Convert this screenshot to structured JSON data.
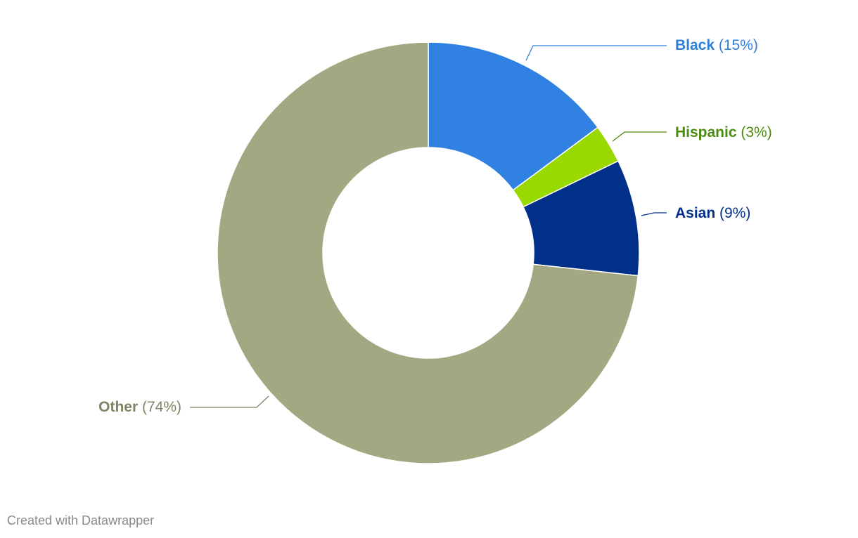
{
  "chart_data": {
    "type": "donut",
    "categories": [
      "Black",
      "Hispanic",
      "Asian",
      "Other"
    ],
    "values": [
      15,
      3,
      9,
      74
    ],
    "value_labels": [
      "(15%)",
      "(3%)",
      "(9%)",
      "(74%)"
    ],
    "colors": [
      "#3081e2",
      "#99d900",
      "#00308a",
      "#a3a882"
    ],
    "label_colors": [
      "#2f7fd9",
      "#4a8c10",
      "#00308a",
      "#7e8464"
    ],
    "credit": "Created with Datawrapper"
  }
}
